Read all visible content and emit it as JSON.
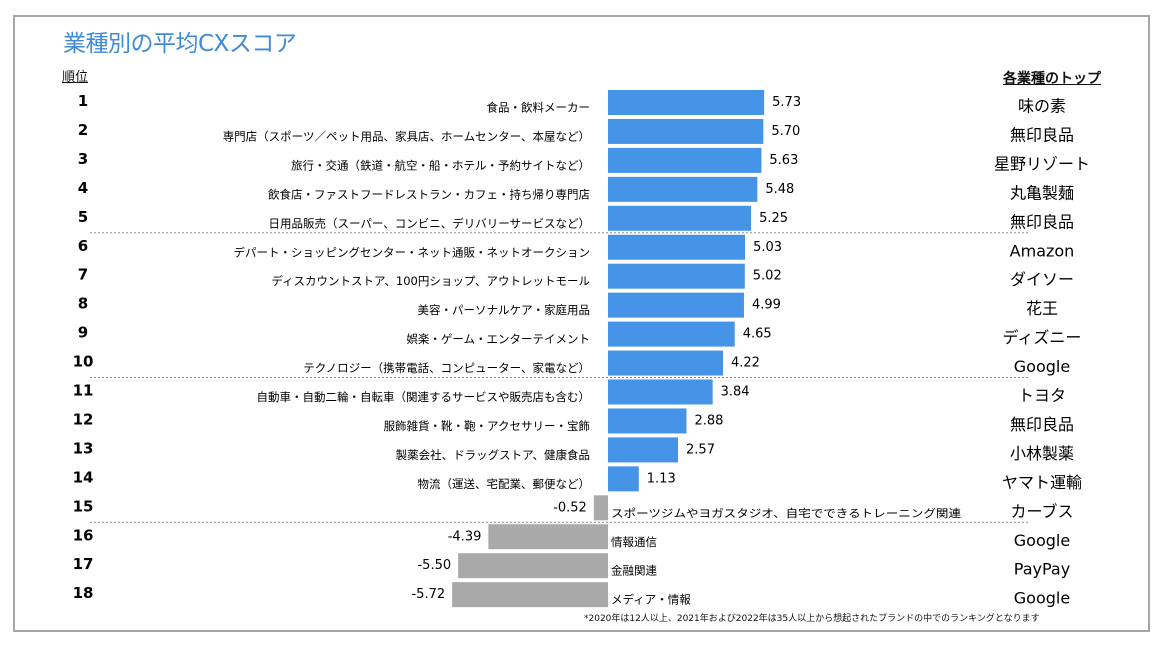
{
  "chart_data": {
    "type": "bar",
    "orientation": "horizontal",
    "title": "業種別の平均CXスコア",
    "rank_header": "順位",
    "top_header": "各業種のトップ",
    "footnote": "*2020年は12人以上、2021年および2022年は35人以上から想起されたブランドの中でのランキングとなります",
    "colors": {
      "positive": "#4694e8",
      "negative": "#a9a9a9",
      "title": "#3d8bd9",
      "separator": "#8c8c8c"
    },
    "group_separators_after_rank": [
      5,
      10,
      15
    ],
    "rows": [
      {
        "rank": "1",
        "category": "食品・飲料メーカー",
        "value": 5.73,
        "label": "5.73",
        "top": "味の素"
      },
      {
        "rank": "2",
        "category": "専門店（スポーツ／ペット用品、家具店、ホームセンター、本屋など）",
        "value": 5.7,
        "label": "5.70",
        "top": "無印良品"
      },
      {
        "rank": "3",
        "category": "旅行・交通（鉄道・航空・船・ホテル・予約サイトなど）",
        "value": 5.63,
        "label": "5.63",
        "top": "星野リゾート"
      },
      {
        "rank": "4",
        "category": "飲食店・ファストフードレストラン・カフェ・持ち帰り専門店",
        "value": 5.48,
        "label": "5.48",
        "top": "丸亀製麺"
      },
      {
        "rank": "5",
        "category": "日用品販売（スーパー、コンビニ、デリバリーサービスなど）",
        "value": 5.25,
        "label": "5.25",
        "top": "無印良品"
      },
      {
        "rank": "6",
        "category": "デパート・ショッピングセンター・ネット通販・ネットオークション",
        "value": 5.03,
        "label": "5.03",
        "top": "Amazon"
      },
      {
        "rank": "7",
        "category": "ディスカウントストア、100円ショップ、アウトレットモール",
        "value": 5.02,
        "label": "5.02",
        "top": "ダイソー"
      },
      {
        "rank": "8",
        "category": "美容・パーソナルケア・家庭用品",
        "value": 4.99,
        "label": "4.99",
        "top": "花王"
      },
      {
        "rank": "9",
        "category": "娯楽・ゲーム・エンターテイメント",
        "value": 4.65,
        "label": "4.65",
        "top": "ディズニー"
      },
      {
        "rank": "10",
        "category": "テクノロジー（携帯電話、コンピューター、家電など）",
        "value": 4.22,
        "label": "4.22",
        "top": "Google"
      },
      {
        "rank": "11",
        "category": "自動車・自動二輪・自転車（関連するサービスや販売店も含む）",
        "value": 3.84,
        "label": "3.84",
        "top": "トヨタ"
      },
      {
        "rank": "12",
        "category": "服飾雑貨・靴・鞄・アクセサリー・宝飾",
        "value": 2.88,
        "label": "2.88",
        "top": "無印良品"
      },
      {
        "rank": "13",
        "category": "製薬会社、ドラッグストア、健康食品",
        "value": 2.57,
        "label": "2.57",
        "top": "小林製薬"
      },
      {
        "rank": "14",
        "category": "物流（運送、宅配業、郵便など）",
        "value": 1.13,
        "label": "1.13",
        "top": "ヤマト運輸"
      },
      {
        "rank": "15",
        "category": "スポーツジムやヨガスタジオ、自宅でできるトレーニング関連",
        "value": -0.52,
        "label": "-0.52",
        "top": "カーブス"
      },
      {
        "rank": "16",
        "category": "情報通信",
        "value": -4.39,
        "label": "-4.39",
        "top": "Google"
      },
      {
        "rank": "17",
        "category": "金融関連",
        "value": -5.5,
        "label": "-5.50",
        "top": "PayPay"
      },
      {
        "rank": "18",
        "category": "メディア・情報",
        "value": -5.72,
        "label": "-5.72",
        "top": "Google"
      }
    ]
  }
}
